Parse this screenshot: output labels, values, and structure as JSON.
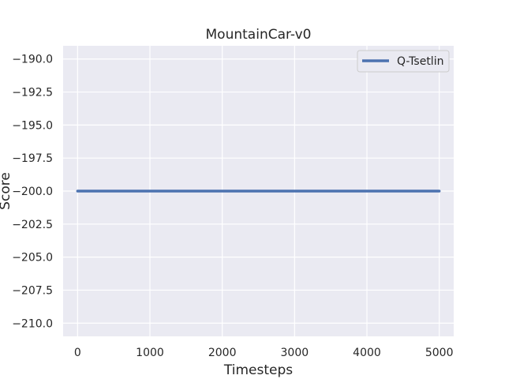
{
  "chart_data": {
    "type": "line",
    "title": "MountainCar-v0",
    "xlabel": "Timesteps",
    "ylabel": "Score",
    "xlim": [
      -200,
      5200
    ],
    "ylim": [
      -211.0,
      -189.0
    ],
    "xticks": [
      0,
      1000,
      2000,
      3000,
      4000,
      5000
    ],
    "yticks": [
      -190.0,
      -192.5,
      -195.0,
      -197.5,
      -200.0,
      -202.5,
      -205.0,
      -207.5,
      -210.0
    ],
    "xtick_labels": [
      "0",
      "1000",
      "2000",
      "3000",
      "4000",
      "5000"
    ],
    "ytick_labels": [
      "−190.0",
      "−192.5",
      "−195.0",
      "−197.5",
      "−200.0",
      "−202.5",
      "−205.0",
      "−207.5",
      "−210.0"
    ],
    "grid": true,
    "legend_position": "top-right",
    "series": [
      {
        "name": "Q-Tsetlin",
        "color": "#4c72b0",
        "x": [
          0,
          500,
          1000,
          1500,
          2000,
          2500,
          3000,
          3500,
          4000,
          4500,
          5000
        ],
        "y": [
          -200,
          -200,
          -200,
          -200,
          -200,
          -200,
          -200,
          -200,
          -200,
          -200,
          -200
        ]
      }
    ]
  },
  "colors": {
    "plot_background": "#eaeaf2",
    "grid": "#ffffff",
    "text": "#262626"
  }
}
